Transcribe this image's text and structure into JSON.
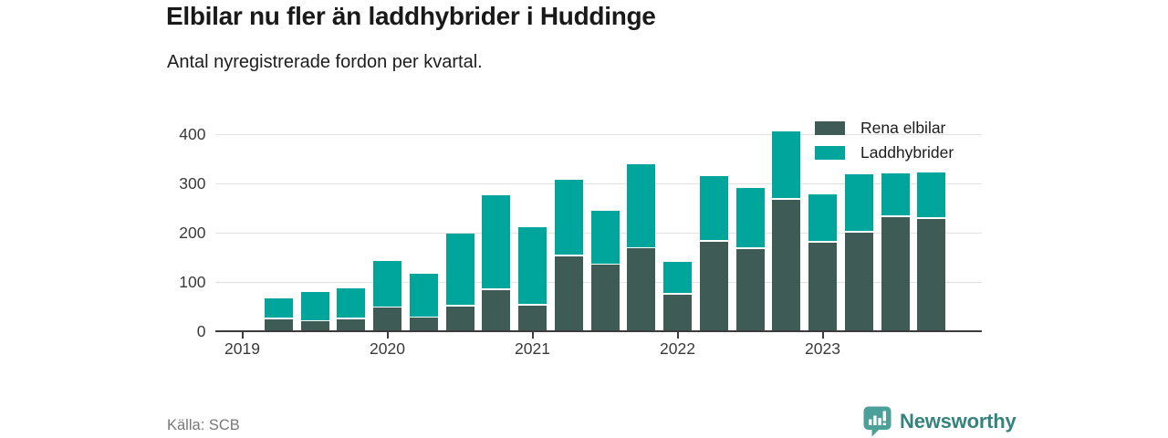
{
  "header": {
    "title": "Elbilar nu fler än laddhybrider i Huddinge",
    "subtitle": "Antal nyregistrerade fordon per kvartal."
  },
  "footer": {
    "source": "Källa: SCB",
    "brand": "Newsworthy"
  },
  "colors": {
    "rena_elbilar": "#3e5c55",
    "laddhybrider": "#00a69b",
    "axis": "#3c3c3c",
    "gridline": "#e2e2e2",
    "brand_teal": "#35837d",
    "brand_pin": "#4ba19a"
  },
  "chart_data": {
    "type": "bar",
    "stacked": true,
    "title": "Elbilar nu fler än laddhybrider i Huddinge",
    "subtitle": "Antal nyregistrerade fordon per kvartal.",
    "categories": [
      "2019 Q2",
      "2019 Q3",
      "2019 Q4",
      "2020 Q1",
      "2020 Q2",
      "2020 Q3",
      "2020 Q4",
      "2021 Q1",
      "2021 Q2",
      "2021 Q3",
      "2021 Q4",
      "2022 Q1",
      "2022 Q2",
      "2022 Q3",
      "2022 Q4",
      "2023 Q1",
      "2023 Q2",
      "2023 Q3",
      "2023 Q4"
    ],
    "series": [
      {
        "name": "Rena elbilar",
        "color": "#3e5c55",
        "values": [
          25,
          20,
          25,
          48,
          27,
          50,
          84,
          52,
          152,
          135,
          168,
          75,
          182,
          167,
          267,
          180,
          200,
          232,
          228
        ]
      },
      {
        "name": "Laddhybrider",
        "color": "#00a69b",
        "values": [
          42,
          60,
          62,
          95,
          89,
          148,
          192,
          160,
          155,
          110,
          170,
          66,
          132,
          123,
          138,
          97,
          119,
          88,
          95
        ]
      }
    ],
    "x_tick_labels": [
      "2019",
      "2020",
      "2021",
      "2022",
      "2023"
    ],
    "y_ticks": [
      0,
      100,
      200,
      300,
      400
    ],
    "ylim": [
      0,
      420
    ],
    "grid": "horizontal",
    "legend_position": "top-right"
  }
}
